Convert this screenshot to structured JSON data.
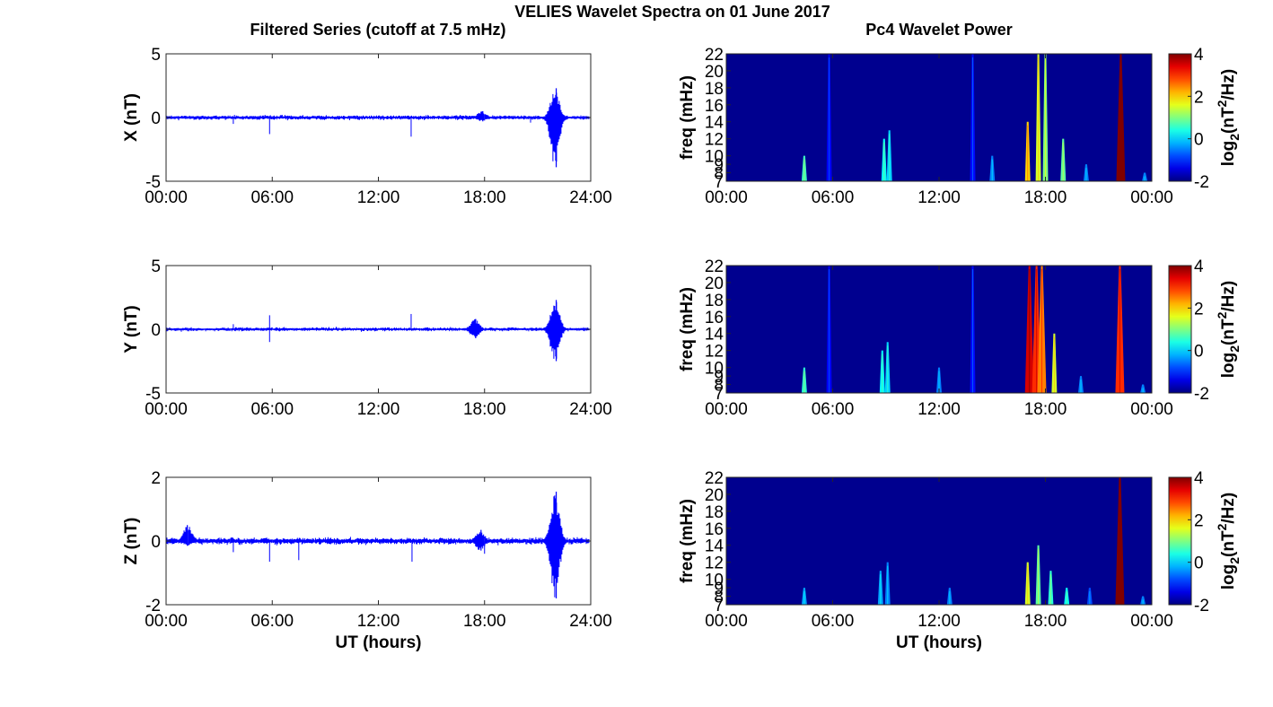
{
  "figure": {
    "title": "VELIES Wavelet Spectra on 01 June 2017",
    "left_column_title": "Filtered Series (cutoff at 7.5 mHz)",
    "right_column_title": "Pc4 Wavelet Power"
  },
  "colors": {
    "trace": "#0000ff",
    "background": "#00008f",
    "axis": "#000000"
  },
  "chart_data": [
    {
      "type": "line",
      "component": "X",
      "ylabel": "X (nT)",
      "xlabel": "",
      "ylim": [
        -5,
        5
      ],
      "yticks": [
        "5",
        "0",
        "-5"
      ],
      "xticks": [
        "00:00",
        "06:00",
        "12:00",
        "18:00",
        "24:00"
      ],
      "series_color": "#0000ff",
      "baseline_noise_nT": 0.12,
      "bursts": [
        {
          "t": 22.05,
          "max": 2.3,
          "min": -3.9
        },
        {
          "t": 17.9,
          "max": 0.5,
          "min": -0.3
        }
      ],
      "spikes": [
        {
          "t": 5.85,
          "v": -1.3
        },
        {
          "t": 13.85,
          "v": -1.5
        },
        {
          "t": 3.8,
          "v": -0.5
        },
        {
          "t": 20.6,
          "v": -0.4
        }
      ]
    },
    {
      "type": "line",
      "component": "Y",
      "ylabel": "Y (nT)",
      "xlabel": "",
      "ylim": [
        -5,
        5
      ],
      "yticks": [
        "5",
        "0",
        "-5"
      ],
      "xticks": [
        "00:00",
        "06:00",
        "12:00",
        "18:00",
        "24:00"
      ],
      "series_color": "#0000ff",
      "baseline_noise_nT": 0.1,
      "bursts": [
        {
          "t": 22.05,
          "max": 2.3,
          "min": -2.5
        },
        {
          "t": 17.5,
          "max": 0.8,
          "min": -0.7
        }
      ],
      "spikes": [
        {
          "t": 5.85,
          "v": 1.1
        },
        {
          "t": 13.85,
          "v": 1.2
        },
        {
          "t": 5.85,
          "v": -1.0
        },
        {
          "t": 3.8,
          "v": 0.4
        }
      ]
    },
    {
      "type": "line",
      "component": "Z",
      "ylabel": "Z (nT)",
      "xlabel": "UT (hours)",
      "ylim": [
        -2,
        2
      ],
      "yticks": [
        "2",
        "0",
        "-2"
      ],
      "xticks": [
        "00:00",
        "06:00",
        "12:00",
        "18:00",
        "24:00"
      ],
      "series_color": "#0000ff",
      "baseline_noise_nT": 0.07,
      "bursts": [
        {
          "t": 22.05,
          "max": 1.55,
          "min": -1.8
        },
        {
          "t": 1.2,
          "max": 0.5,
          "min": -0.15
        },
        {
          "t": 17.8,
          "max": 0.35,
          "min": -0.3
        }
      ],
      "spikes": [
        {
          "t": 5.85,
          "v": -0.65
        },
        {
          "t": 7.5,
          "v": -0.6
        },
        {
          "t": 13.9,
          "v": -0.65
        },
        {
          "t": 3.8,
          "v": -0.35
        },
        {
          "t": 18.0,
          "v": -0.4
        }
      ]
    },
    {
      "type": "heatmap",
      "component": "X",
      "ylabel": "freq (mHz)",
      "xlabel": "",
      "clabel": "log2(nT²/Hz)",
      "y_range_mHz": [
        7,
        22
      ],
      "yticks": [
        "22",
        "20",
        "18",
        "16",
        "14",
        "12",
        "10",
        "9",
        "8",
        "7"
      ],
      "xticks": [
        "00:00",
        "06:00",
        "12:00",
        "18:00",
        "00:00"
      ],
      "clim": [
        -2,
        4
      ],
      "cticks": [
        "4",
        "2",
        "0",
        "-2"
      ],
      "colormap": "jet",
      "features": [
        {
          "t": 22.25,
          "fmax": 22,
          "power": 4.0
        },
        {
          "t": 17.6,
          "fmax": 22,
          "power": 1.5
        },
        {
          "t": 17.0,
          "fmax": 14,
          "power": 2.0
        },
        {
          "t": 18.0,
          "fmax": 22,
          "power": 1.0
        },
        {
          "t": 19.0,
          "fmax": 12,
          "power": 0.8
        },
        {
          "t": 4.4,
          "fmax": 10,
          "power": 0.6
        },
        {
          "t": 8.9,
          "fmax": 12,
          "power": 0.3
        },
        {
          "t": 9.2,
          "fmax": 13,
          "power": 0.0
        },
        {
          "t": 15.0,
          "fmax": 10,
          "power": -0.5
        },
        {
          "t": 20.3,
          "fmax": 9,
          "power": -0.5
        },
        {
          "t": 23.6,
          "fmax": 8,
          "power": -0.5
        },
        {
          "t": 13.9,
          "fmax": 22,
          "power": -1.2
        },
        {
          "t": 5.8,
          "fmax": 22,
          "power": -1.3
        }
      ]
    },
    {
      "type": "heatmap",
      "component": "Y",
      "ylabel": "freq (mHz)",
      "xlabel": "",
      "clabel": "log2(nT²/Hz)",
      "y_range_mHz": [
        7,
        22
      ],
      "yticks": [
        "22",
        "20",
        "18",
        "16",
        "14",
        "12",
        "10",
        "9",
        "8",
        "7"
      ],
      "xticks": [
        "00:00",
        "06:00",
        "12:00",
        "18:00",
        "00:00"
      ],
      "clim": [
        -2,
        4
      ],
      "cticks": [
        "4",
        "2",
        "0",
        "-2"
      ],
      "colormap": "jet",
      "features": [
        {
          "t": 17.1,
          "fmax": 22,
          "power": 3.5
        },
        {
          "t": 17.5,
          "fmax": 22,
          "power": 3.0
        },
        {
          "t": 17.8,
          "fmax": 22,
          "power": 2.5
        },
        {
          "t": 18.5,
          "fmax": 14,
          "power": 1.5
        },
        {
          "t": 22.2,
          "fmax": 22,
          "power": 3.0
        },
        {
          "t": 4.4,
          "fmax": 10,
          "power": 0.5
        },
        {
          "t": 8.8,
          "fmax": 12,
          "power": 0.2
        },
        {
          "t": 9.1,
          "fmax": 13,
          "power": 0.0
        },
        {
          "t": 12.0,
          "fmax": 10,
          "power": -0.5
        },
        {
          "t": 20.0,
          "fmax": 9,
          "power": -0.5
        },
        {
          "t": 23.5,
          "fmax": 8,
          "power": -0.5
        },
        {
          "t": 13.9,
          "fmax": 22,
          "power": -1.2
        },
        {
          "t": 5.8,
          "fmax": 22,
          "power": -1.3
        }
      ]
    },
    {
      "type": "heatmap",
      "component": "Z",
      "ylabel": "freq (mHz)",
      "xlabel": "UT (hours)",
      "clabel": "log2(nT²/Hz)",
      "y_range_mHz": [
        7,
        22
      ],
      "yticks": [
        "22",
        "20",
        "18",
        "16",
        "14",
        "12",
        "10",
        "9",
        "8",
        "7"
      ],
      "xticks": [
        "00:00",
        "06:00",
        "12:00",
        "18:00",
        "00:00"
      ],
      "clim": [
        -2,
        4
      ],
      "cticks": [
        "4",
        "2",
        "0",
        "-2"
      ],
      "colormap": "jet",
      "features": [
        {
          "t": 22.2,
          "fmax": 22,
          "power": 4.0
        },
        {
          "t": 17.0,
          "fmax": 12,
          "power": 1.5
        },
        {
          "t": 17.6,
          "fmax": 14,
          "power": 0.8
        },
        {
          "t": 18.3,
          "fmax": 11,
          "power": 0.5
        },
        {
          "t": 19.2,
          "fmax": 9,
          "power": 0.3
        },
        {
          "t": 4.4,
          "fmax": 9,
          "power": -0.3
        },
        {
          "t": 8.7,
          "fmax": 11,
          "power": -0.3
        },
        {
          "t": 9.1,
          "fmax": 12,
          "power": -0.5
        },
        {
          "t": 12.6,
          "fmax": 9,
          "power": -0.5
        },
        {
          "t": 20.5,
          "fmax": 9,
          "power": -0.8
        },
        {
          "t": 23.5,
          "fmax": 8,
          "power": -0.5
        }
      ]
    }
  ]
}
